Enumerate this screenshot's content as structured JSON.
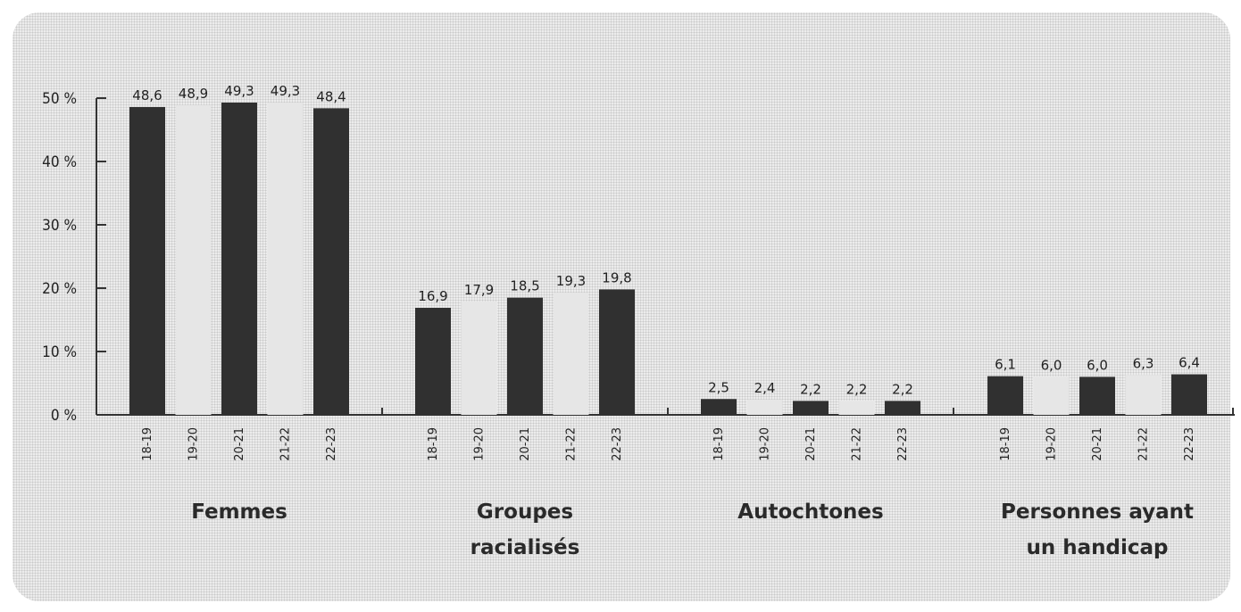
{
  "chart_data": {
    "type": "bar",
    "categories": [
      "Femmes",
      "Groupes racialisés",
      "Autochtones",
      "Personnes ayant un handicap"
    ],
    "category_label_lines": [
      [
        "Femmes"
      ],
      [
        "Groupes",
        "racialisés"
      ],
      [
        "Autochtones"
      ],
      [
        "Personnes ayant",
        "un handicap"
      ]
    ],
    "periods": [
      "18-19",
      "19-20",
      "20-21",
      "21-22",
      "22-23"
    ],
    "values": [
      [
        48.6,
        48.9,
        49.3,
        49.3,
        48.4
      ],
      [
        16.9,
        17.9,
        18.5,
        19.3,
        19.8
      ],
      [
        2.5,
        2.4,
        2.2,
        2.2,
        2.2
      ],
      [
        6.1,
        6.0,
        6.0,
        6.3,
        6.4
      ]
    ],
    "value_labels": [
      [
        "48,6",
        "48,9",
        "49,3",
        "49,3",
        "48,4"
      ],
      [
        "16,9",
        "17,9",
        "18,5",
        "19,3",
        "19,8"
      ],
      [
        "2,5",
        "2,4",
        "2,2",
        "2,2",
        "2,2"
      ],
      [
        "6,1",
        "6,0",
        "6,0",
        "6,3",
        "6,4"
      ]
    ],
    "y_ticks": [
      0,
      10,
      20,
      30,
      40,
      50
    ],
    "y_tick_labels": [
      "0 %",
      "10 %",
      "20 %",
      "30 %",
      "40 %",
      "50 %"
    ],
    "ylim": [
      0,
      50
    ],
    "grid": false,
    "legend": "none",
    "title": "",
    "xlabel": "",
    "ylabel": "",
    "colors": {
      "dark": "#303030",
      "light": "#e6e6e6",
      "axis": "#333333",
      "text": "#222222"
    }
  }
}
